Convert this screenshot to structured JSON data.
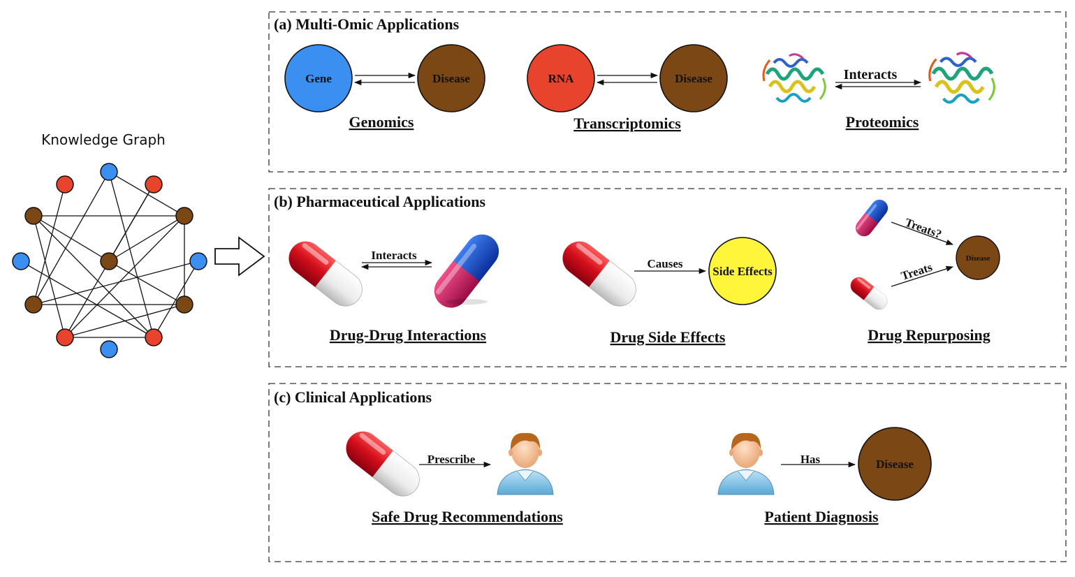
{
  "knowledge_graph": {
    "title": "Knowledge Graph",
    "colors": {
      "blue": "#3b8ff0",
      "red": "#e8432c",
      "brown": "#7b4714"
    }
  },
  "panels": {
    "multi_omic": {
      "title": "(a) Multi-Omic Applications",
      "genomics": {
        "node_a": "Gene",
        "node_b": "Disease",
        "caption": "Genomics"
      },
      "transcriptomics": {
        "node_a": "RNA",
        "node_b": "Disease",
        "caption": "Transcriptomics"
      },
      "proteomics": {
        "relation": "Interacts",
        "caption": "Proteomics"
      }
    },
    "pharmaceutical": {
      "title": "(b) Pharmaceutical Applications",
      "ddi": {
        "relation": "Interacts",
        "caption": "Drug-Drug Interactions"
      },
      "side_effects": {
        "relation": "Causes",
        "node": "Side Effects",
        "caption": "Drug Side Effects"
      },
      "repurposing": {
        "relation_a": "Treats?",
        "relation_b": "Treats",
        "node": "Disease",
        "caption": "Drug Repurposing"
      }
    },
    "clinical": {
      "title": "(c) Clinical Applications",
      "recommendation": {
        "relation": "Prescribe",
        "caption": "Safe Drug Recommendations"
      },
      "diagnosis": {
        "relation": "Has",
        "node": "Disease",
        "caption": "Patient Diagnosis"
      }
    }
  }
}
